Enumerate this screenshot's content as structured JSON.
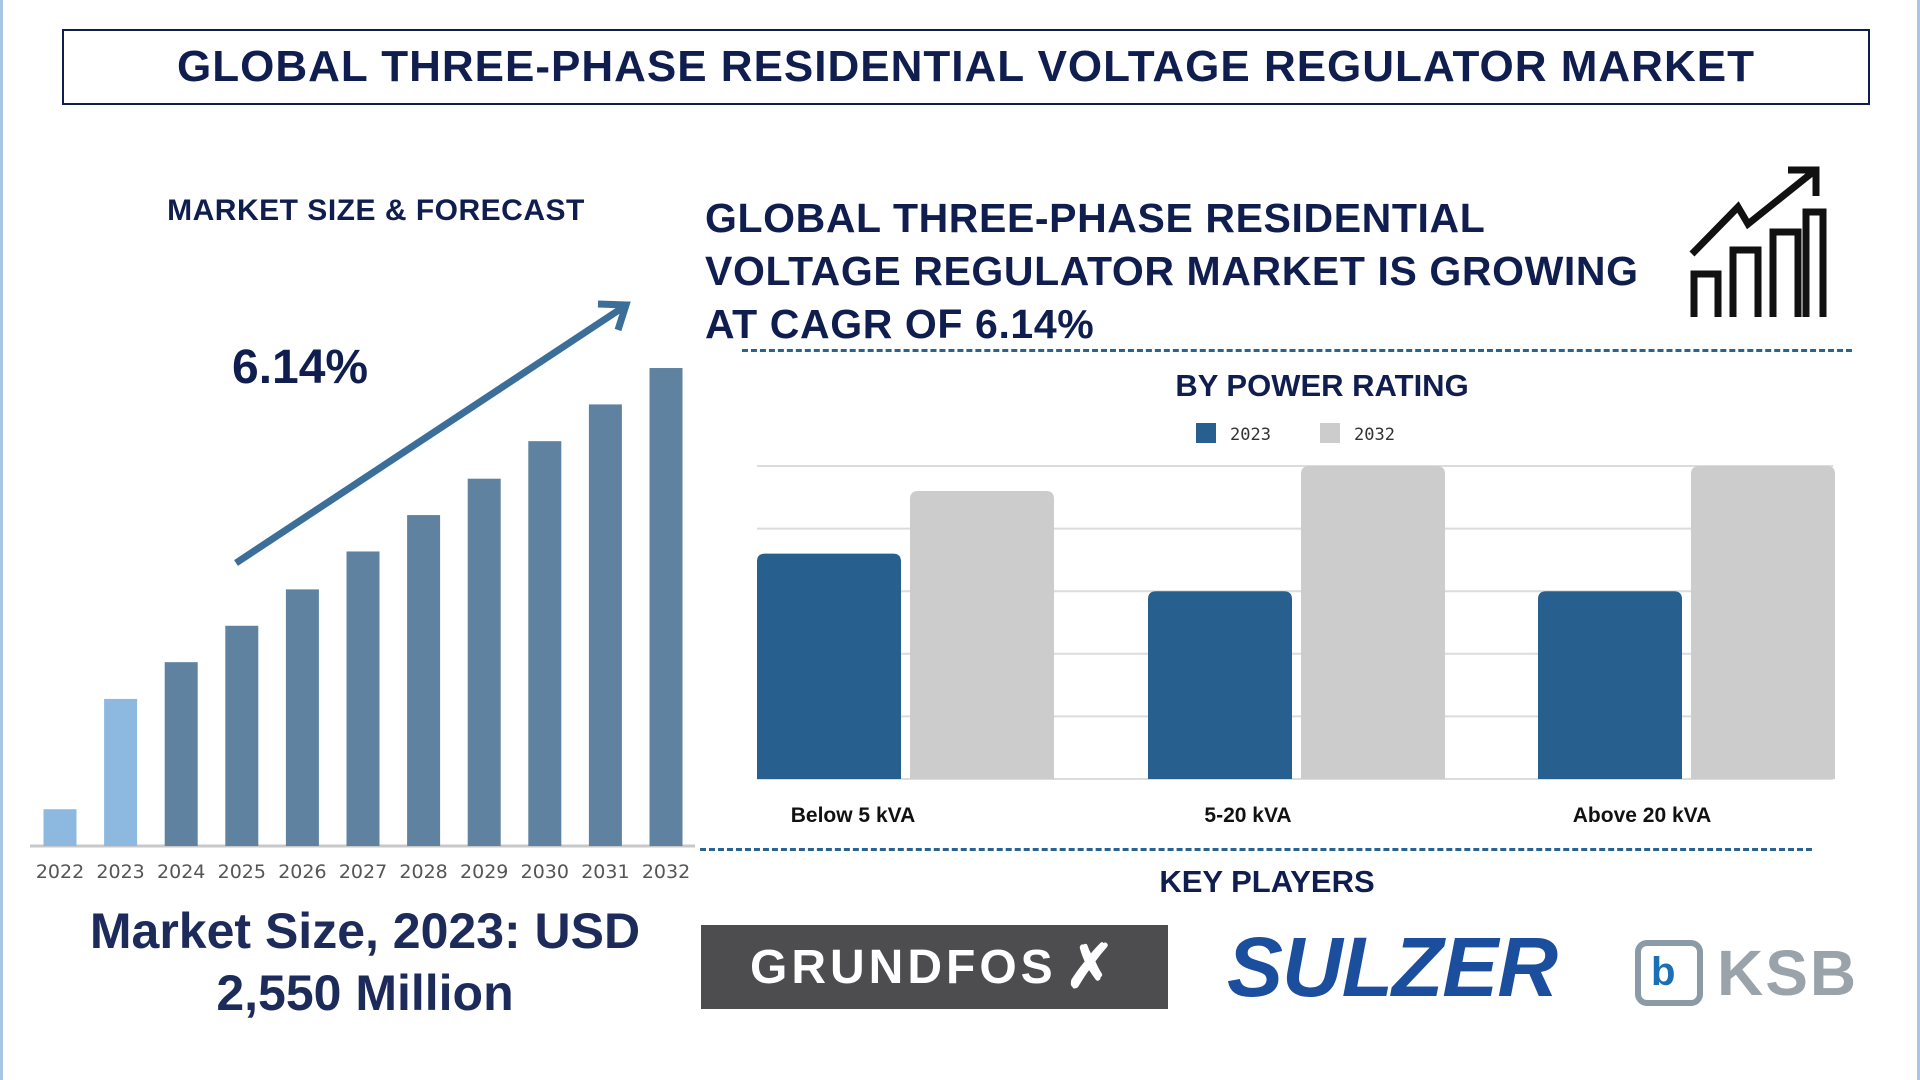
{
  "header": {
    "title": "GLOBAL THREE-PHASE RESIDENTIAL VOLTAGE REGULATOR MARKET"
  },
  "left": {
    "section_title": "MARKET SIZE & FORECAST",
    "cagr_label": "6.14%",
    "market_size_line1": "Market Size, 2023: USD",
    "market_size_line2": "2,550 Million"
  },
  "right": {
    "headline_lines": [
      "GLOBAL THREE-PHASE RESIDENTIAL",
      "VOLTAGE REGULATOR MARKET IS GROWING",
      "AT CAGR OF 6.14%"
    ],
    "headline_icon": "growth-chart-icon",
    "key_players_title": "KEY PLAYERS",
    "key_players": [
      "GRUNDFOS",
      "SULZER",
      "KSB"
    ]
  },
  "chart_data": [
    {
      "type": "bar",
      "title": "MARKET SIZE & FORECAST",
      "categories": [
        "2022",
        "2023",
        "2024",
        "2025",
        "2026",
        "2027",
        "2028",
        "2029",
        "2030",
        "2031",
        "2032"
      ],
      "values": [
        0.96,
        3.84,
        4.8,
        5.75,
        6.7,
        7.69,
        8.64,
        9.59,
        10.57,
        11.53,
        12.48
      ],
      "highlighted": [
        "2022",
        "2023"
      ],
      "colors": {
        "historic": "#8db9e0",
        "forecast": "#5f82a0",
        "arrow": "#3b6e99"
      },
      "ylim": [
        0,
        13
      ],
      "grid": false,
      "annotation": "6.14%"
    },
    {
      "type": "bar",
      "title": "BY POWER RATING",
      "categories": [
        "Below 5 kVA",
        "5-20 kVA",
        "Above 20 kVA"
      ],
      "series": [
        {
          "name": "2023",
          "values": [
            3.6,
            3.0,
            3.0
          ],
          "color": "#27608f"
        },
        {
          "name": "2032",
          "values": [
            4.6,
            5.0,
            5.0
          ],
          "color": "#cccccc"
        }
      ],
      "ylim": [
        0,
        5
      ],
      "grid": true,
      "legend": "top"
    }
  ]
}
